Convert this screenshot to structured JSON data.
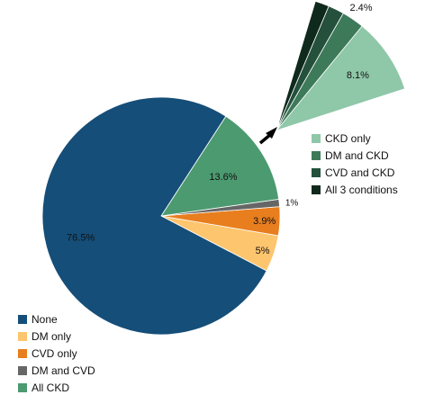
{
  "chart_data": {
    "type": "pie",
    "main_pie": {
      "slices": [
        {
          "label": "None",
          "value": 76.5,
          "display": "76.5%",
          "color": "#154e78"
        },
        {
          "label": "DM only",
          "value": 5.0,
          "display": "5%",
          "color": "#fdc56e"
        },
        {
          "label": "CVD only",
          "value": 3.9,
          "display": "3.9%",
          "color": "#e87e1e"
        },
        {
          "label": "DM and CVD",
          "value": 1.0,
          "display": "1%",
          "color": "#666666"
        },
        {
          "label": "All CKD",
          "value": 13.6,
          "display": "13.6%",
          "color": "#4c9a70"
        }
      ],
      "legend_position": "bottom-left"
    },
    "ckd_breakdown": {
      "slices": [
        {
          "label": "CKD only",
          "value": 8.1,
          "display": "8.1%",
          "color": "#8fc7a9"
        },
        {
          "label": "DM and CKD",
          "value": 2.4,
          "display": "2.4%",
          "color": "#3d7a5a"
        },
        {
          "label": "CVD and CKD",
          "value": 1.7,
          "display": "1.7%",
          "color": "#24503c"
        },
        {
          "label": "All 3 conditions",
          "value": 1.5,
          "display": "1.5%",
          "color": "#0f2a1c"
        }
      ],
      "legend_position": "right"
    }
  }
}
